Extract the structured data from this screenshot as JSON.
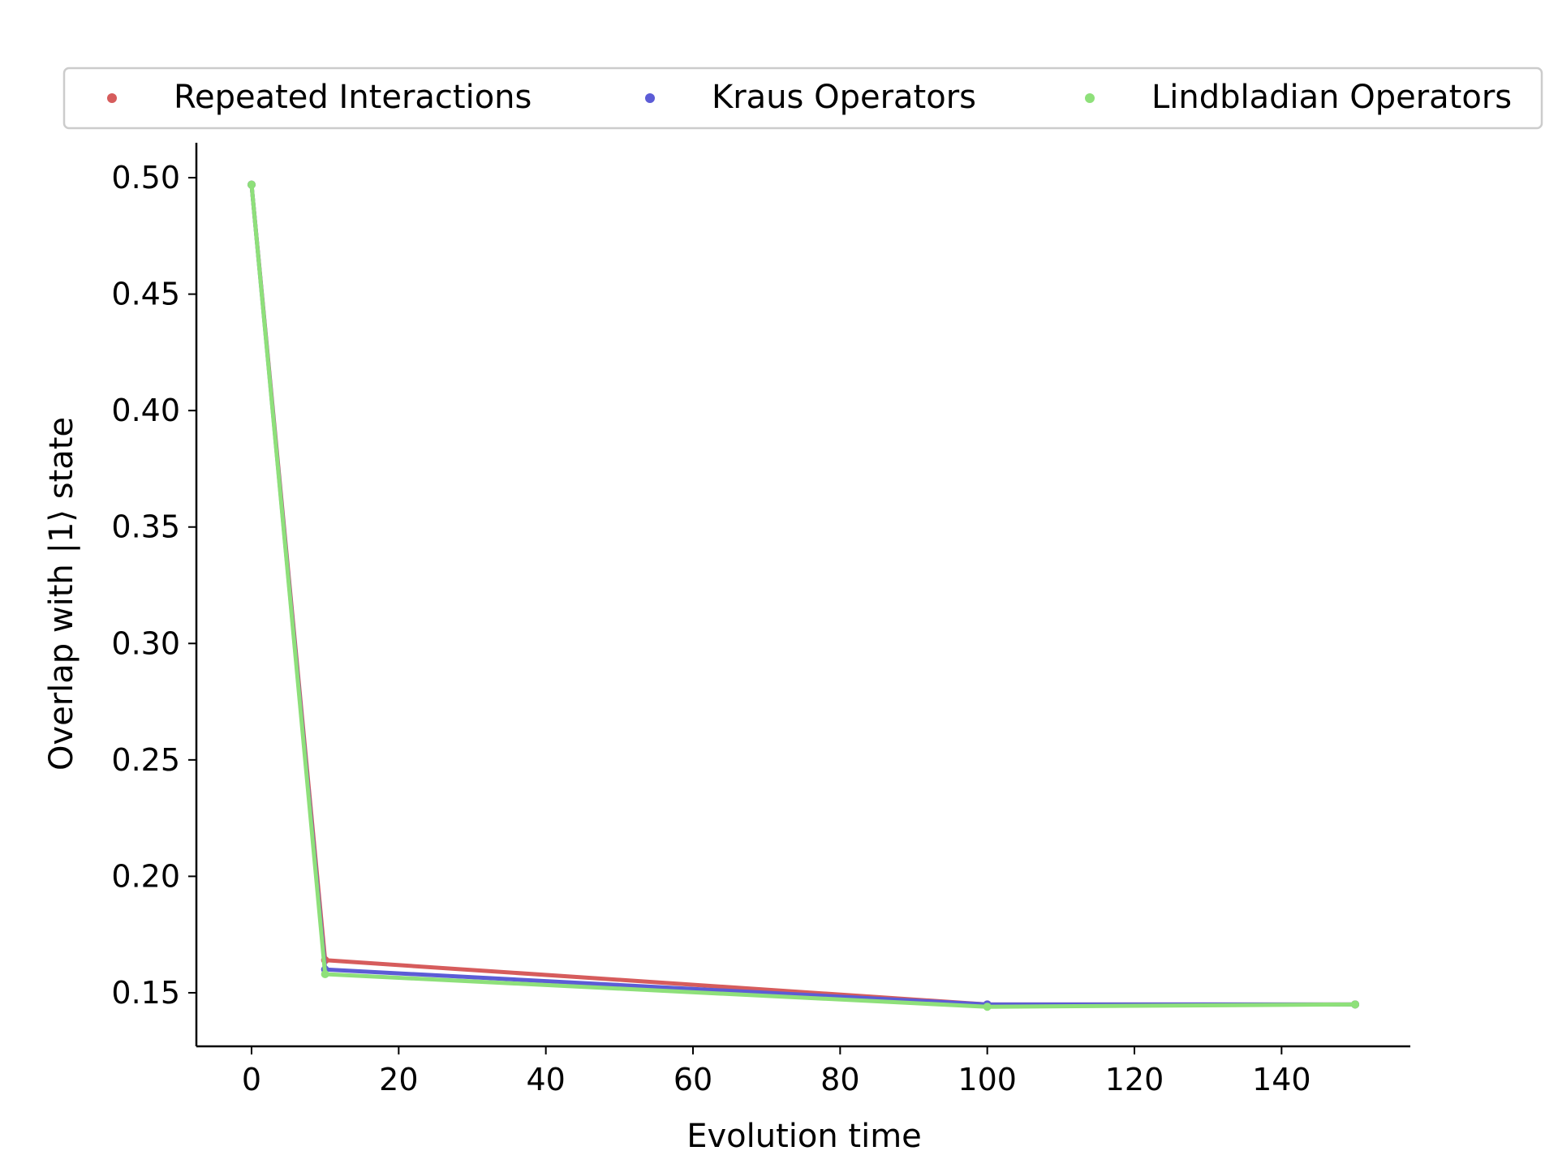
{
  "chart_data": {
    "type": "line",
    "title": "",
    "xlabel": "Evolution time",
    "ylabel": "Overlap with |1⟩ state",
    "xlim": [
      -7.5,
      157.5
    ],
    "ylim": [
      0.127,
      0.515
    ],
    "xticks": [
      0,
      20,
      40,
      60,
      80,
      100,
      120,
      140
    ],
    "yticks": [
      0.15,
      0.2,
      0.25,
      0.3,
      0.35,
      0.4,
      0.45,
      0.5
    ],
    "ytick_labels": [
      "0.15",
      "0.20",
      "0.25",
      "0.30",
      "0.35",
      "0.40",
      "0.45",
      "0.50"
    ],
    "grid": false,
    "legend_position": "top",
    "x": [
      0,
      10,
      100,
      150
    ],
    "series": [
      {
        "name": "Repeated Interactions",
        "color": "#d65c5c",
        "values": [
          0.497,
          0.164,
          0.145,
          0.145
        ]
      },
      {
        "name": "Kraus Operators",
        "color": "#5c5cd6",
        "values": [
          0.497,
          0.16,
          0.145,
          0.145
        ]
      },
      {
        "name": "Lindbladian Operators",
        "color": "#8ee07a",
        "values": [
          0.497,
          0.158,
          0.144,
          0.145
        ]
      }
    ]
  }
}
